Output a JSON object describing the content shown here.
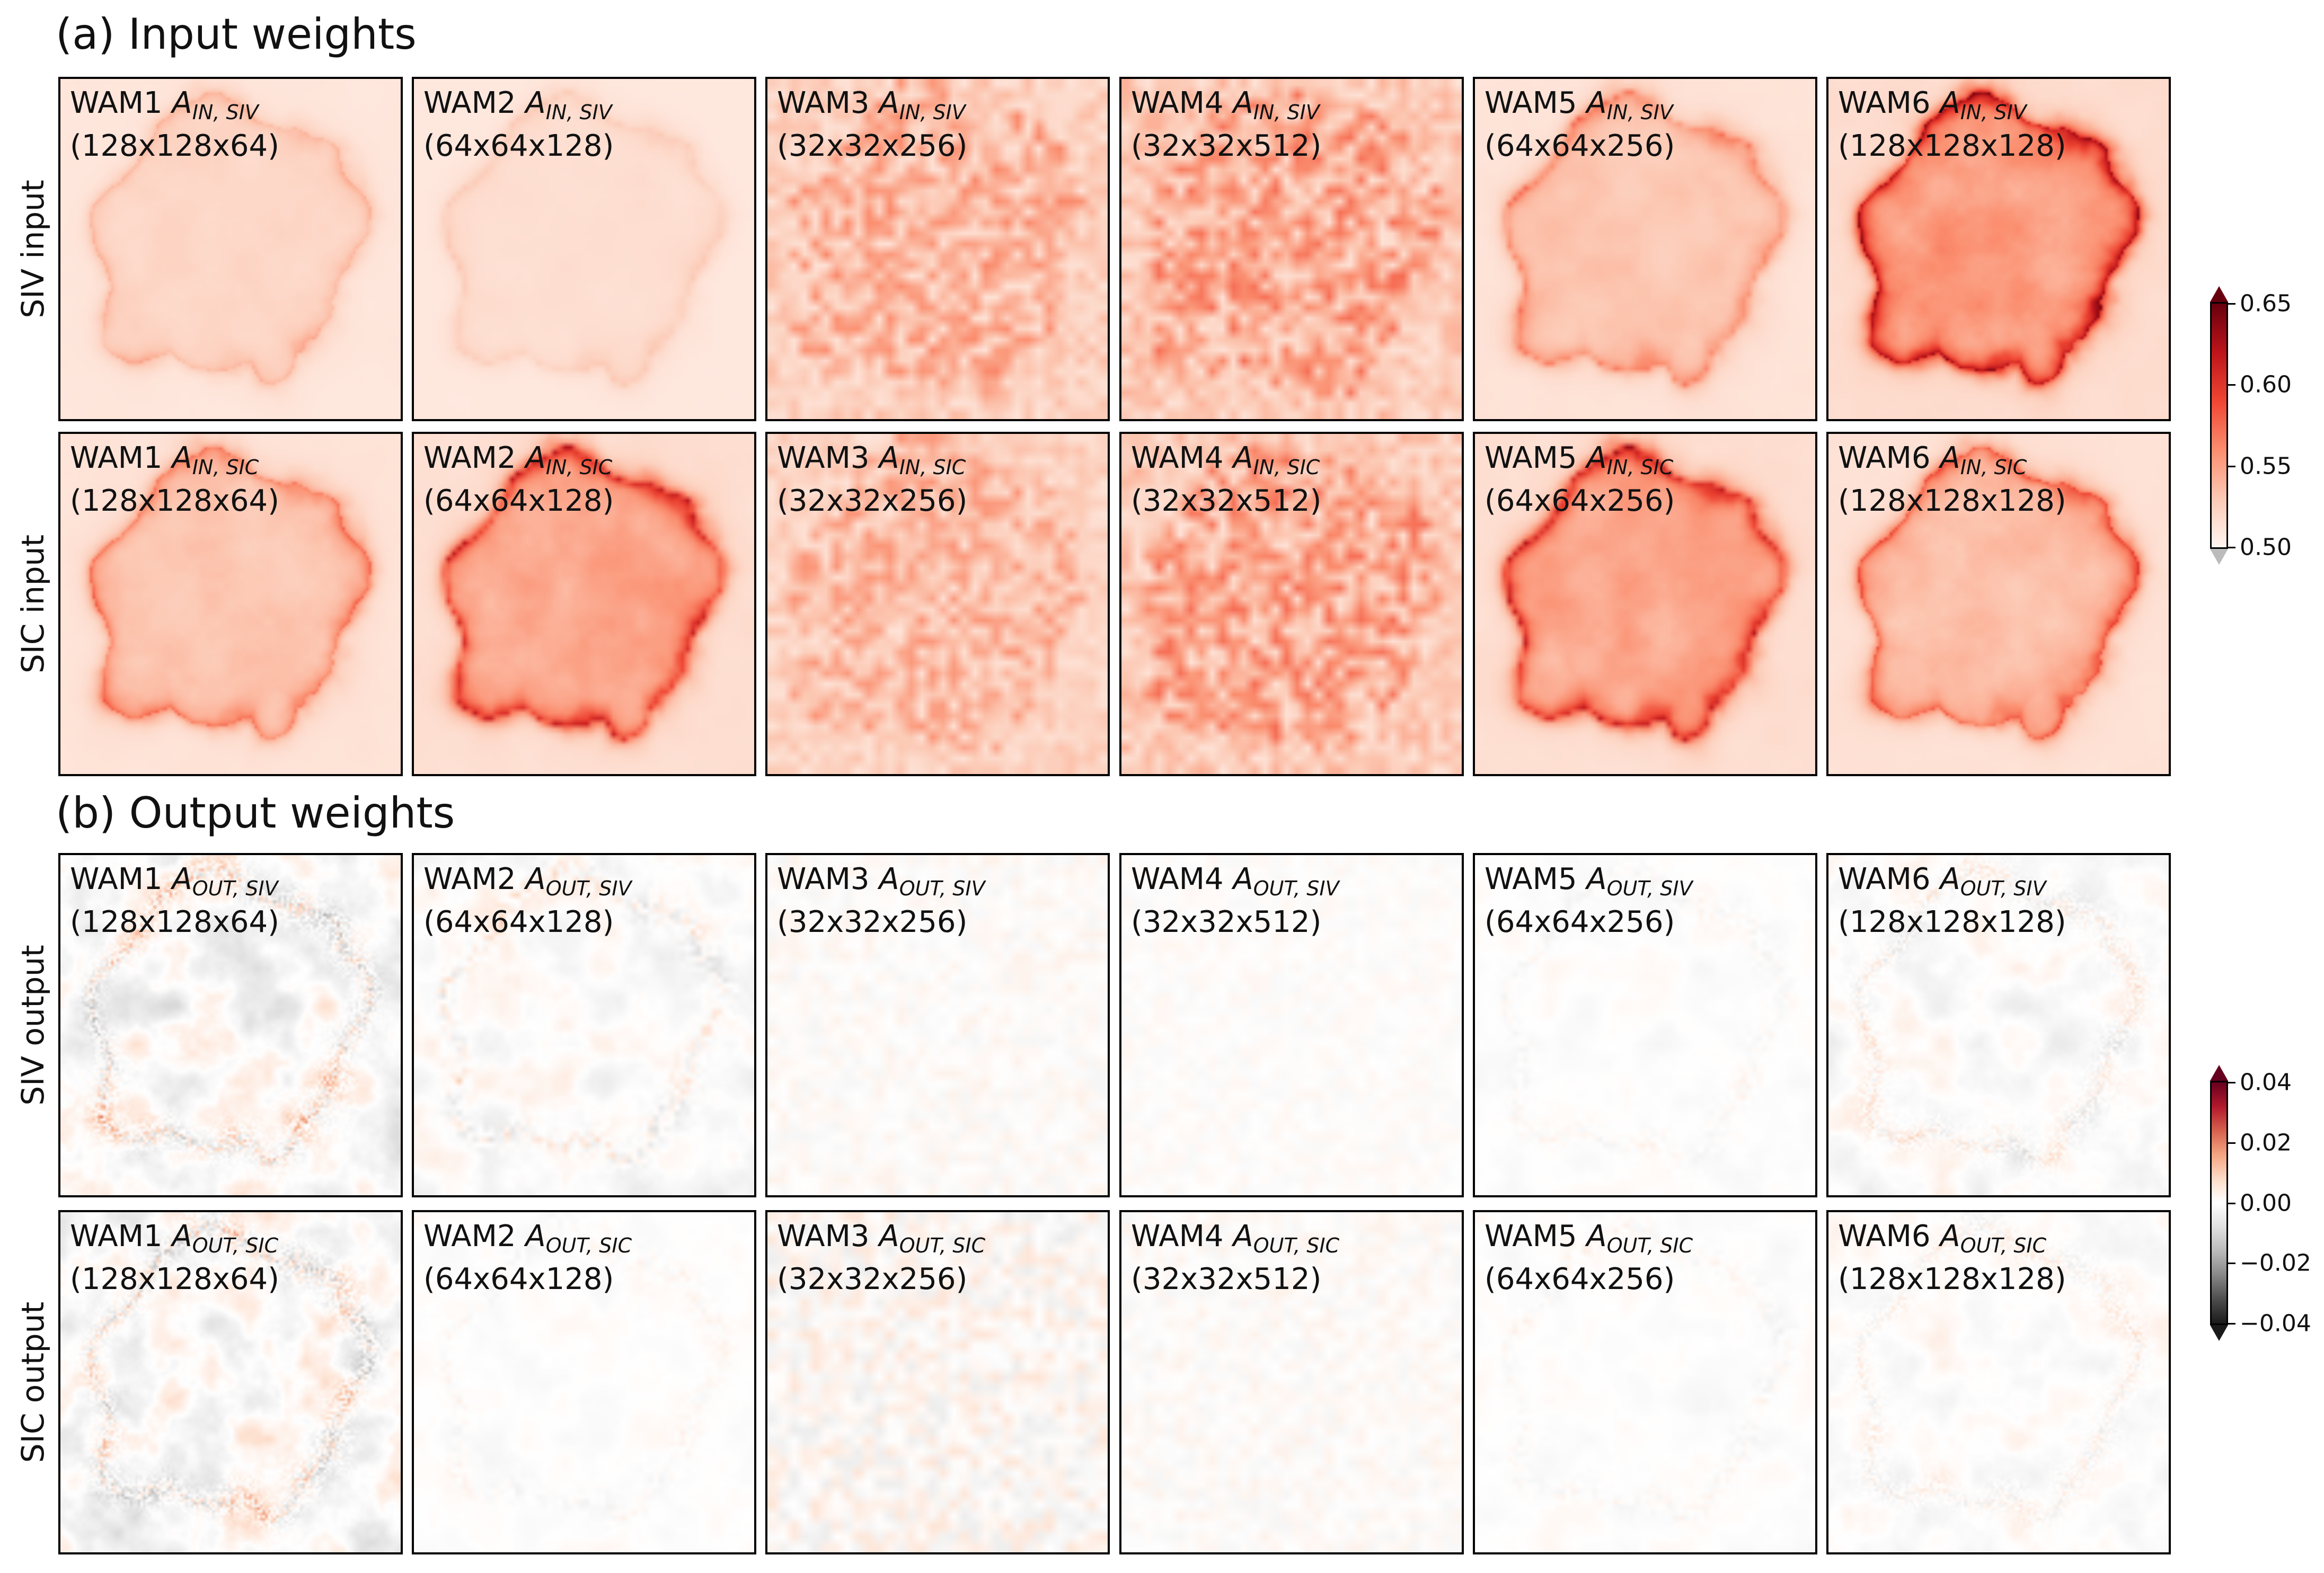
{
  "chart_data": {
    "type": "heatmap",
    "sections": [
      {
        "title": "(a) Input weights",
        "rows": [
          {
            "label": "SIV input",
            "var": "SIV",
            "kind": "IN"
          },
          {
            "label": "SIC input",
            "var": "SIC",
            "kind": "IN"
          }
        ],
        "colormap": "Reds",
        "colorbar": {
          "min": 0.5,
          "max": 0.65,
          "ticks": [
            "0.65",
            "0.60",
            "0.55",
            "0.50"
          ],
          "extend": "both"
        }
      },
      {
        "title": "(b) Output weights",
        "rows": [
          {
            "label": "SIV output",
            "var": "SIV",
            "kind": "OUT"
          },
          {
            "label": "SIC output",
            "var": "SIC",
            "kind": "OUT"
          }
        ],
        "colormap": "RdGy_r",
        "colorbar": {
          "min": -0.04,
          "max": 0.04,
          "ticks": [
            "0.04",
            "0.02",
            "0.00",
            "−0.02",
            "−0.04"
          ],
          "extend": "both"
        }
      }
    ],
    "modules": [
      {
        "name": "WAM1",
        "shape": "(128x128x64)",
        "grid": 128
      },
      {
        "name": "WAM2",
        "shape": "(64x64x128)",
        "grid": 64
      },
      {
        "name": "WAM3",
        "shape": "(32x32x256)",
        "grid": 32
      },
      {
        "name": "WAM4",
        "shape": "(32x32x512)",
        "grid": 32
      },
      {
        "name": "WAM5",
        "shape": "(64x64x256)",
        "grid": 64
      },
      {
        "name": "WAM6",
        "shape": "(128x128x128)",
        "grid": 128
      }
    ],
    "symbol": "A",
    "intensity": {
      "IN_SIV": [
        0.25,
        0.15,
        0.45,
        0.55,
        0.45,
        0.85
      ],
      "IN_SIC": [
        0.45,
        0.75,
        0.4,
        0.55,
        0.75,
        0.55
      ],
      "OUT_SIV": [
        0.85,
        0.5,
        0.15,
        0.1,
        0.2,
        0.45
      ],
      "OUT_SIC": [
        0.85,
        0.2,
        0.3,
        0.15,
        0.2,
        0.35
      ]
    }
  }
}
